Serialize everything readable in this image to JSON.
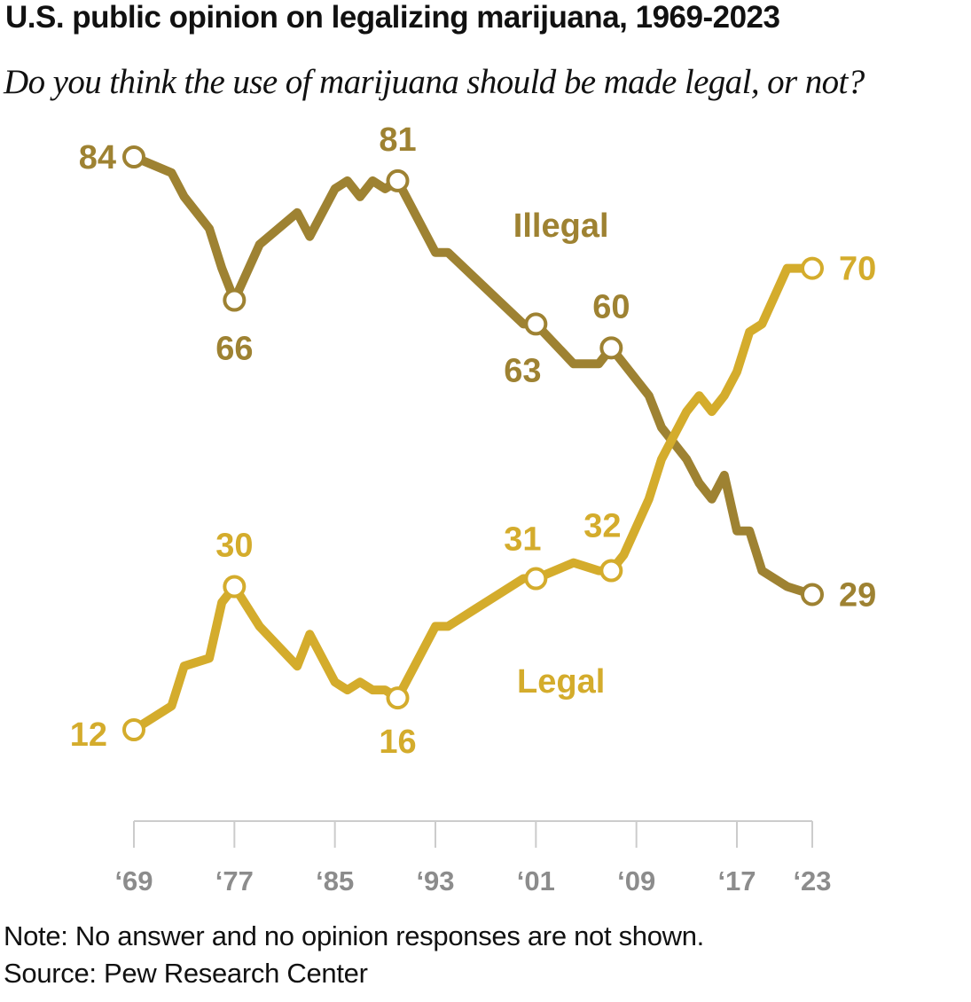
{
  "title": "U.S. public opinion on legalizing marijuana, 1969-2023",
  "subtitle": "Do you think the use of marijuana should be made legal, or not?",
  "note": "Note: No answer and no opinion responses are not shown.",
  "source": "Source: Pew Research Center",
  "colors": {
    "illegal": "#9e8232",
    "legal": "#d4ac2c",
    "axis": "#cccccc",
    "axis_text": "#8c8c8c"
  },
  "chart_data": {
    "type": "line",
    "title": "U.S. public opinion on legalizing marijuana, 1969-2023",
    "subtitle": "Do you think the use of marijuana should be made legal, or not?",
    "xlabel": "",
    "ylabel": "",
    "x_range": [
      1969,
      2023
    ],
    "y_range": [
      5,
      88
    ],
    "grid": false,
    "x_ticks": [
      1969,
      1977,
      1985,
      1993,
      2001,
      2009,
      2017,
      2023
    ],
    "x_tick_labels": [
      "‘69",
      "‘77",
      "‘85",
      "‘93",
      "‘01",
      "‘09",
      "‘17",
      "‘23"
    ],
    "series": [
      {
        "name": "Illegal",
        "color": "#9e8232",
        "x": [
          1969,
          1972,
          1973,
          1975,
          1976,
          1977,
          1979,
          1982,
          1983,
          1985,
          1986,
          1987,
          1988,
          1989,
          1990,
          1991,
          1993,
          1994,
          1996,
          1998,
          2000,
          2001,
          2004,
          2006,
          2007,
          2008,
          2010,
          2011,
          2013,
          2014,
          2015,
          2016,
          2017,
          2018,
          2019,
          2021,
          2023
        ],
        "y": [
          84,
          82,
          79,
          75,
          70,
          66,
          73,
          77,
          74,
          80,
          81,
          79,
          81,
          80,
          81,
          78,
          72,
          72,
          69,
          66,
          63,
          63,
          58,
          58,
          60,
          58,
          54,
          50,
          46,
          43,
          41,
          44,
          37,
          37,
          32,
          30,
          29
        ],
        "labels": [
          {
            "x": 1969,
            "y": 84,
            "text": "84"
          },
          {
            "x": 1977,
            "y": 66,
            "text": "66"
          },
          {
            "x": 1990,
            "y": 81,
            "text": "81"
          },
          {
            "x": 2001,
            "y": 63,
            "text": "63"
          },
          {
            "x": 2007,
            "y": 60,
            "text": "60"
          },
          {
            "x": 2023,
            "y": 29,
            "text": "29"
          }
        ]
      },
      {
        "name": "Legal",
        "color": "#d4ac2c",
        "x": [
          1969,
          1972,
          1973,
          1975,
          1976,
          1977,
          1979,
          1982,
          1983,
          1985,
          1986,
          1987,
          1988,
          1989,
          1990,
          1991,
          1993,
          1994,
          1996,
          1998,
          2000,
          2001,
          2004,
          2006,
          2007,
          2008,
          2010,
          2011,
          2013,
          2014,
          2015,
          2016,
          2017,
          2018,
          2019,
          2021,
          2023
        ],
        "y": [
          12,
          15,
          20,
          21,
          28,
          30,
          25,
          20,
          24,
          18,
          17,
          18,
          17,
          17,
          16,
          19,
          25,
          25,
          27,
          29,
          31,
          31,
          33,
          32,
          32,
          34,
          41,
          46,
          52,
          54,
          52,
          54,
          57,
          62,
          63,
          70,
          70
        ],
        "labels": [
          {
            "x": 1969,
            "y": 12,
            "text": "12"
          },
          {
            "x": 1977,
            "y": 30,
            "text": "30"
          },
          {
            "x": 1990,
            "y": 16,
            "text": "16"
          },
          {
            "x": 2001,
            "y": 31,
            "text": "31"
          },
          {
            "x": 2007,
            "y": 32,
            "text": "32"
          },
          {
            "x": 2023,
            "y": 70,
            "text": "70"
          }
        ]
      }
    ]
  }
}
